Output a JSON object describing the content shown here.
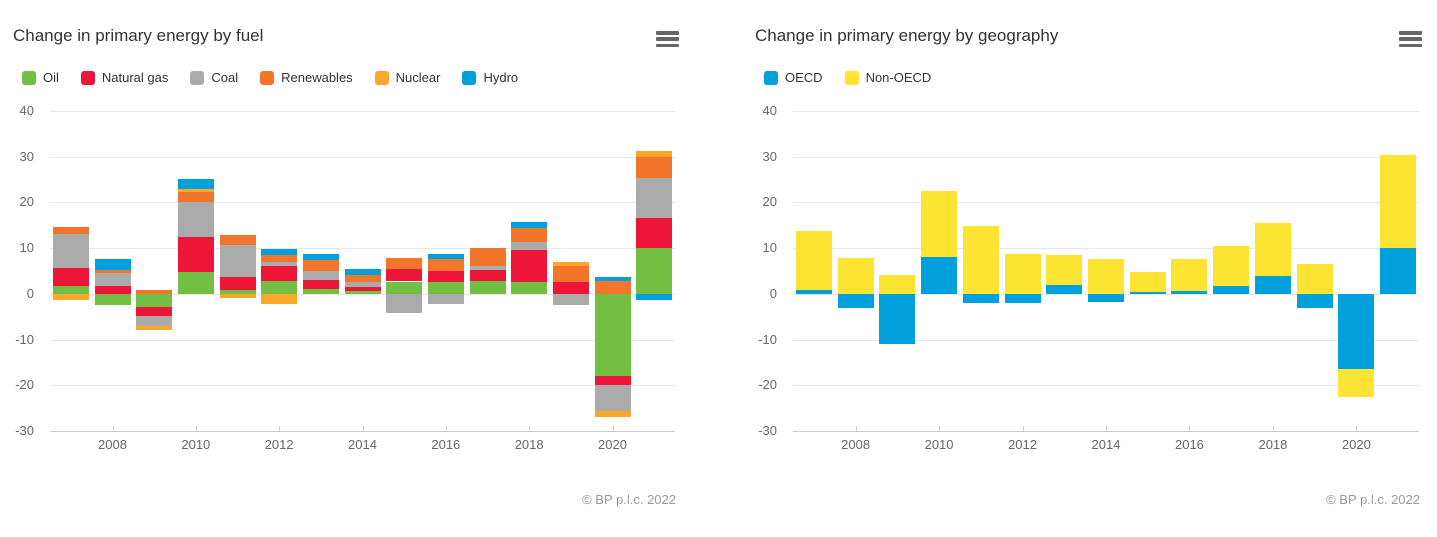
{
  "charts": [
    {
      "title": "Change in primary energy by fuel",
      "credits": "© BP p.l.c. 2022",
      "chart_data": {
        "type": "bar",
        "stacked": true,
        "grid": true,
        "legend_position": "top-left",
        "x": [
          2007,
          2008,
          2009,
          2010,
          2011,
          2012,
          2013,
          2014,
          2015,
          2016,
          2017,
          2018,
          2019,
          2020,
          2021
        ],
        "xticks": [
          "2008",
          "2010",
          "2012",
          "2014",
          "2016",
          "2018",
          "2020"
        ],
        "yticks": [
          "40",
          "30",
          "20",
          "10",
          "0",
          "-10",
          "-20",
          "-30"
        ],
        "ylim": [
          -30,
          40
        ],
        "series": [
          {
            "name": "Oil",
            "color": "#72BF44",
            "values": [
              1.7,
              -2.4,
              -2.9,
              4.7,
              0.8,
              2.8,
              1.1,
              0.6,
              2.7,
              2.7,
              2.9,
              2.7,
              0,
              -18.0,
              10.0
            ]
          },
          {
            "name": "Natural gas",
            "color": "#ED1639",
            "values": [
              3.9,
              1.7,
              -2.0,
              7.8,
              2.9,
              3.2,
              1.9,
              0.9,
              2.7,
              2.2,
              2.3,
              6.8,
              2.7,
              -2.0,
              6.7
            ]
          },
          {
            "name": "Coal",
            "color": "#ABABAB",
            "values": [
              7.6,
              2.8,
              -2.2,
              7.5,
              7.0,
              0.9,
              1.9,
              1.1,
              -4.2,
              -2.2,
              1.0,
              1.9,
              -2.4,
              -5.7,
              8.7
            ]
          },
          {
            "name": "Renewables",
            "color": "#F3742B",
            "values": [
              1.4,
              0.8,
              0.8,
              2.3,
              2.1,
              1.5,
              2.5,
              1.5,
              2.4,
              2.7,
              3.9,
              3.1,
              3.3,
              2.8,
              4.6
            ]
          },
          {
            "name": "Nuclear",
            "color": "#F9A82C",
            "values": [
              -1.3,
              0,
              -0.9,
              0.7,
              -1.0,
              -2.2,
              0,
              0,
              0,
              0,
              0,
              0,
              0.9,
              -1.2,
              1.2
            ]
          },
          {
            "name": "Hydro",
            "color": "#00A0DC",
            "values": [
              0,
              2.3,
              0,
              2.2,
              0,
              1.5,
              1.3,
              1.4,
              0,
              1.1,
              0,
              1.2,
              0,
              0.9,
              -1.3
            ]
          }
        ]
      }
    },
    {
      "title": "Change in primary energy by geography",
      "credits": "© BP p.l.c. 2022",
      "chart_data": {
        "type": "bar",
        "stacked": true,
        "grid": true,
        "legend_position": "top-left",
        "x": [
          2007,
          2008,
          2009,
          2010,
          2011,
          2012,
          2013,
          2014,
          2015,
          2016,
          2017,
          2018,
          2019,
          2020,
          2021
        ],
        "xticks": [
          "2008",
          "2010",
          "2012",
          "2014",
          "2016",
          "2018",
          "2020"
        ],
        "yticks": [
          "40",
          "30",
          "20",
          "10",
          "0",
          "-10",
          "-20",
          "-30"
        ],
        "ylim": [
          -30,
          40
        ],
        "series": [
          {
            "name": "OECD",
            "color": "#00A0DC",
            "values": [
              0.8,
              -3.0,
              -11.0,
              8.0,
              -2.0,
              -2.0,
              2.0,
              -1.8,
              0.5,
              0.6,
              1.7,
              3.8,
              -3.0,
              -16.4,
              10.0
            ]
          },
          {
            "name": "Non-OECD",
            "color": "#FDE433",
            "values": [
              13.0,
              7.8,
              4.1,
              14.5,
              14.8,
              8.8,
              6.6,
              7.6,
              4.2,
              7.1,
              8.8,
              11.7,
              6.6,
              -6.1,
              20.3
            ]
          }
        ]
      }
    }
  ]
}
